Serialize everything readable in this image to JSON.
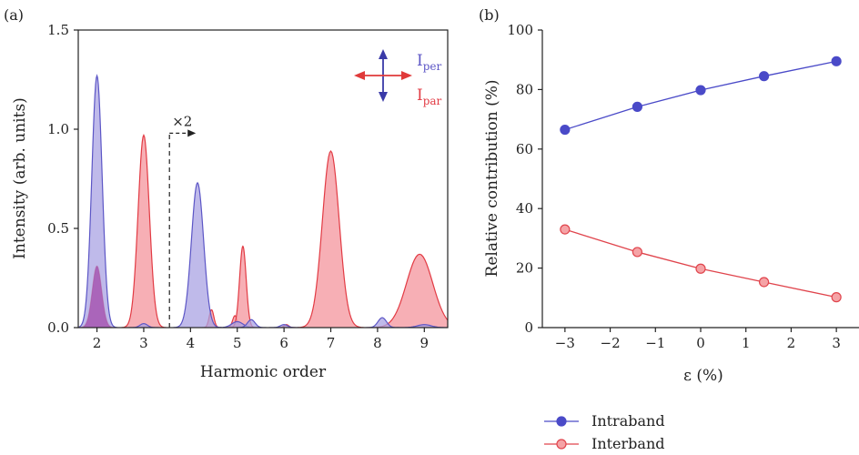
{
  "colors": {
    "per": "#5c56c6",
    "per_fill": "#a9a3e3",
    "par": "#e23b44",
    "par_fill": "#f6a1a8",
    "overlap": "#9b2fa3",
    "intra": "#4a4ac8",
    "inter_line": "#e0444c",
    "inter_fill": "#f5a3a6",
    "arrow_blue": "#3a3aa8",
    "arrow_red": "#e03a3a"
  },
  "chart_data": [
    {
      "panel_label": "(a)",
      "type": "area",
      "xlabel": "Harmonic order",
      "ylabel": "Intensity (arb. units)",
      "xlim": [
        1.6,
        9.5
      ],
      "ylim": [
        0,
        1.5
      ],
      "xticks": [
        2,
        3,
        4,
        5,
        6,
        7,
        8,
        9
      ],
      "yticks": [
        0.0,
        0.5,
        1.0,
        1.5
      ],
      "ytick_labels": [
        "0.0",
        "0.5",
        "1.0",
        "1.5"
      ],
      "annotation": "×2",
      "annotation_x": 3.55,
      "annotation_y": 0.98,
      "legend": {
        "per": {
          "main": "I",
          "sub": "per"
        },
        "par": {
          "main": "I",
          "sub": "par"
        }
      },
      "series": [
        {
          "key": "per",
          "peaks": [
            {
              "center": 2.0,
              "height": 1.27,
              "width": 0.11
            },
            {
              "center": 3.0,
              "height": 0.02,
              "width": 0.08
            },
            {
              "center": 4.15,
              "height": 0.73,
              "width": 0.13
            },
            {
              "center": 5.0,
              "height": 0.03,
              "width": 0.12
            },
            {
              "center": 5.3,
              "height": 0.04,
              "width": 0.08
            },
            {
              "center": 6.0,
              "height": 0.015,
              "width": 0.08
            },
            {
              "center": 8.1,
              "height": 0.05,
              "width": 0.09
            },
            {
              "center": 9.0,
              "height": 0.015,
              "width": 0.15
            }
          ]
        },
        {
          "key": "par",
          "peaks": [
            {
              "center": 2.0,
              "height": 0.31,
              "width": 0.1
            },
            {
              "center": 3.0,
              "height": 0.97,
              "width": 0.12
            },
            {
              "center": 4.45,
              "height": 0.09,
              "width": 0.05
            },
            {
              "center": 4.95,
              "height": 0.06,
              "width": 0.05
            },
            {
              "center": 5.12,
              "height": 0.41,
              "width": 0.07
            },
            {
              "center": 6.05,
              "height": 0.015,
              "width": 0.05
            },
            {
              "center": 7.0,
              "height": 0.89,
              "width": 0.18
            },
            {
              "center": 8.9,
              "height": 0.37,
              "width": 0.28
            }
          ]
        }
      ]
    },
    {
      "panel_label": "(b)",
      "type": "line",
      "xlabel": "ε (%)",
      "ylabel": "Relative contribution (%)",
      "xlim": [
        -3.5,
        3.5
      ],
      "ylim": [
        0,
        100
      ],
      "xticks": [
        -3,
        -2,
        -1,
        0,
        1,
        2,
        3
      ],
      "xtick_labels": [
        "−3",
        "−2",
        "−1",
        "0",
        "1",
        "2",
        "3"
      ],
      "yticks": [
        0,
        20,
        40,
        60,
        80,
        100
      ],
      "legend_position": "bottom",
      "series": [
        {
          "name": "Intraband",
          "key": "intra",
          "x": [
            -3,
            -1.4,
            0,
            1.4,
            3
          ],
          "y": [
            66.5,
            74.2,
            79.8,
            84.5,
            89.5
          ]
        },
        {
          "name": "Interband",
          "key": "inter",
          "x": [
            -3,
            -1.4,
            0,
            1.4,
            3
          ],
          "y": [
            33,
            25.4,
            19.8,
            15.3,
            10.2
          ]
        }
      ]
    }
  ]
}
